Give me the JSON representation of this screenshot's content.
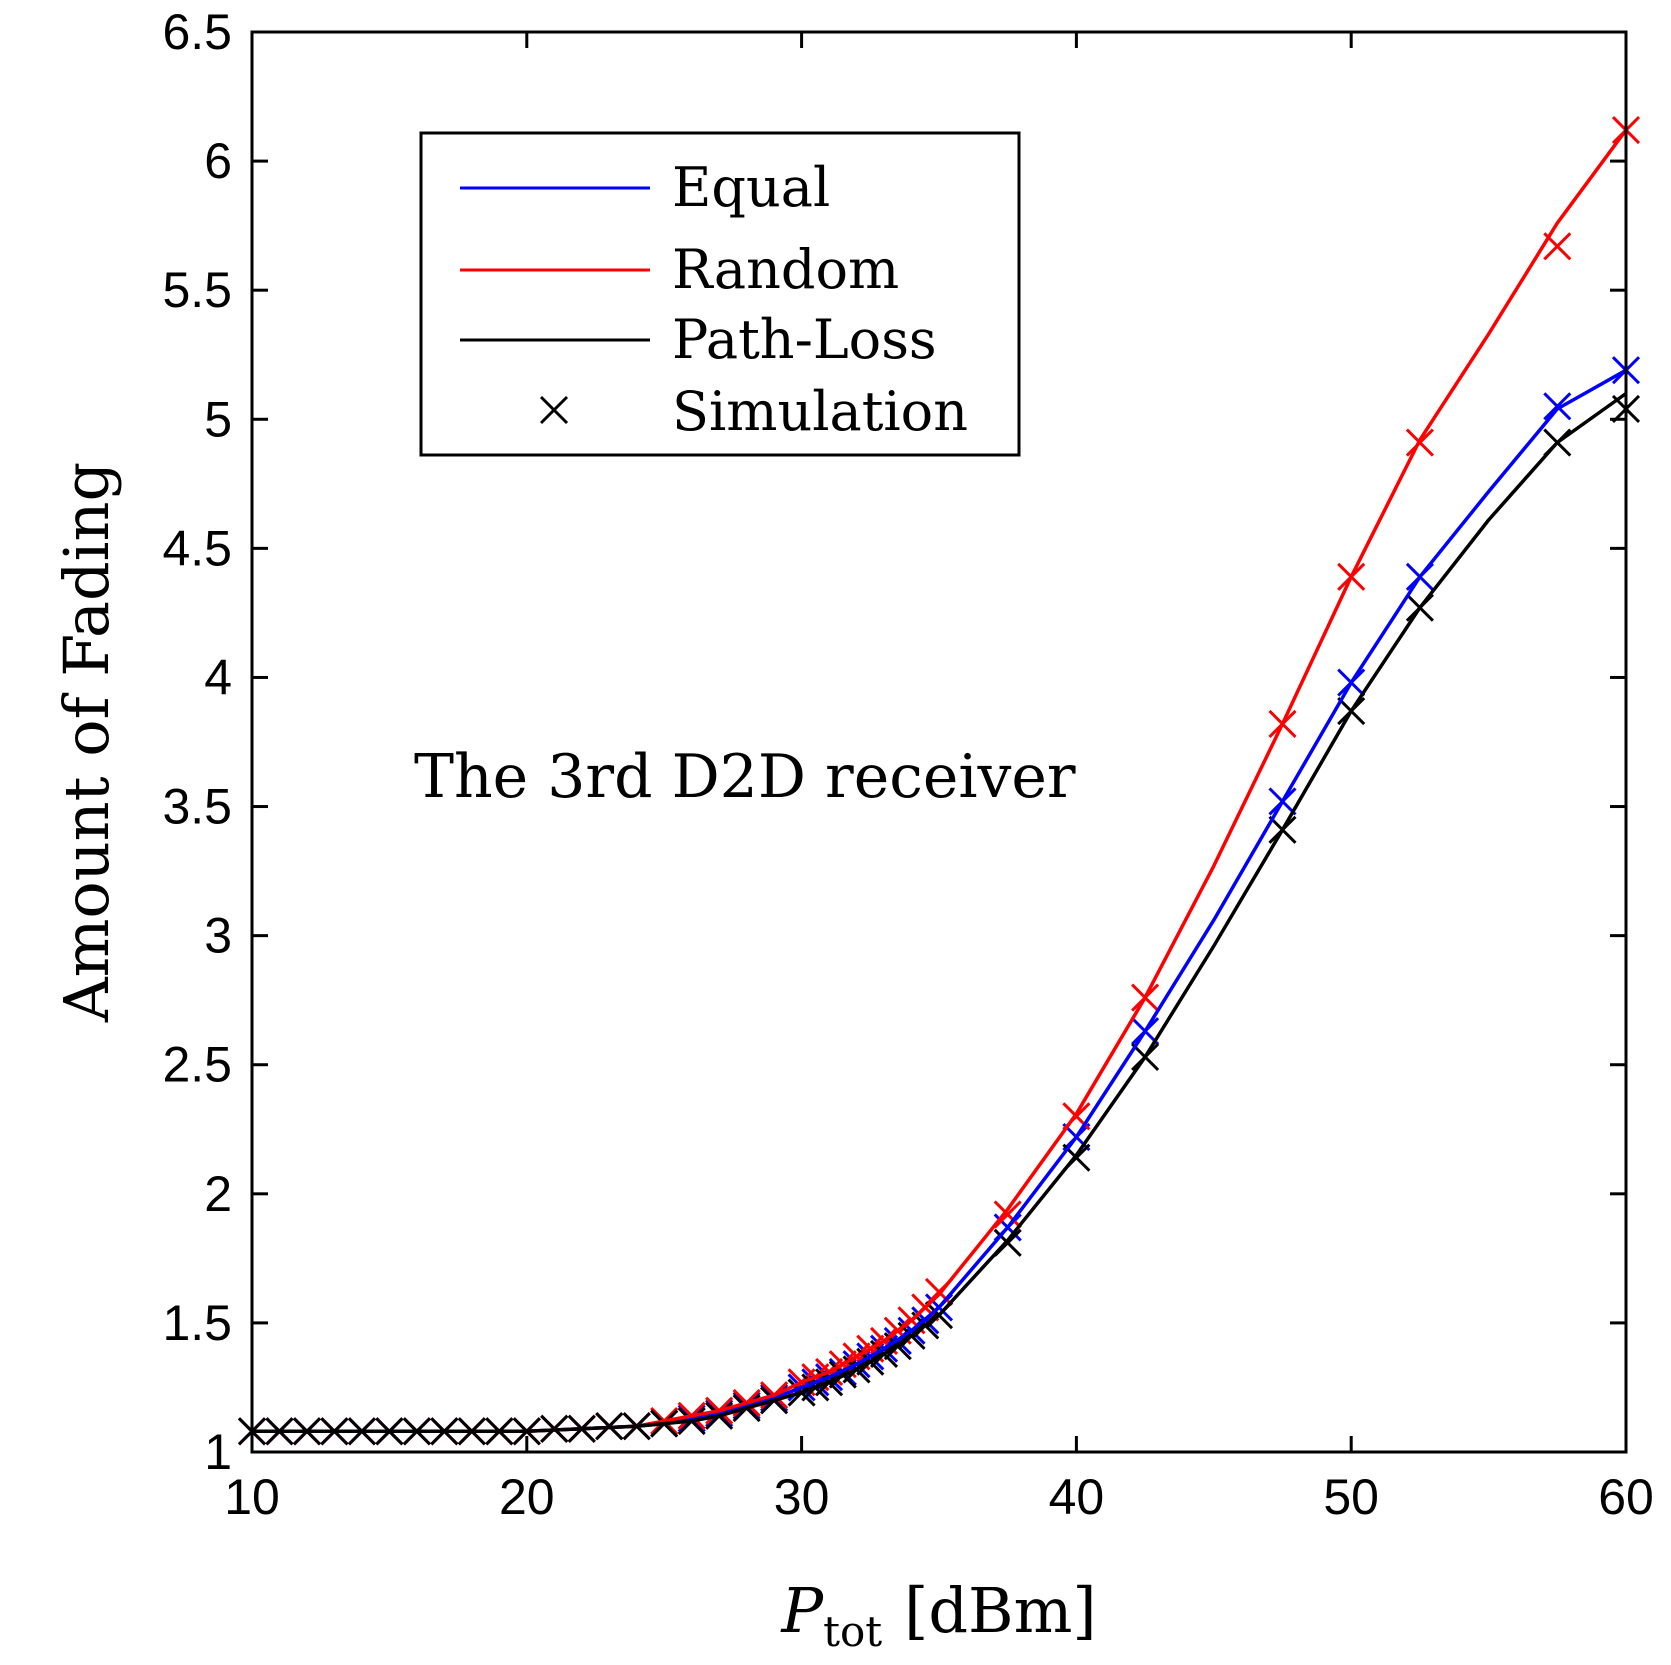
{
  "chart_data": {
    "type": "line",
    "title": "",
    "xlabel_main": "P",
    "xlabel_sub": "tot",
    "xlabel_unit": "[dBm]",
    "ylabel": "Amount of Fading",
    "xlim": [
      10,
      60
    ],
    "ylim": [
      1,
      6.5
    ],
    "xticks": [
      10,
      20,
      30,
      40,
      50,
      60
    ],
    "yticks": [
      1,
      1.5,
      2,
      2.5,
      3,
      3.5,
      4,
      4.5,
      5,
      5.5,
      6,
      6.5
    ],
    "xtick_labels": [
      "10",
      "20",
      "30",
      "40",
      "50",
      "60"
    ],
    "ytick_labels": [
      "1",
      "1.5",
      "2",
      "2.5",
      "3",
      "3.5",
      "4",
      "4.5",
      "5",
      "5.5",
      "6",
      "6.5"
    ],
    "grid": false,
    "annotation": "The 3rd D2D receiver",
    "legend": {
      "position": "top-left",
      "entries": [
        {
          "label": "Equal",
          "color": "#0000ff",
          "style": "line"
        },
        {
          "label": "Random",
          "color": "#ff0000",
          "style": "line"
        },
        {
          "label": "Path-Loss",
          "color": "#000000",
          "style": "line"
        },
        {
          "label": "Simulation",
          "color": "#000000",
          "style": "marker"
        }
      ]
    },
    "series": [
      {
        "name": "Equal",
        "color": "#0000ff",
        "x": [
          10,
          12,
          14,
          16,
          18,
          20,
          22,
          24,
          25,
          26,
          27,
          28,
          29,
          30,
          31,
          32,
          33,
          34,
          35,
          37.5,
          40,
          42.5,
          45,
          47.5,
          50,
          52.5,
          55,
          57.5,
          60
        ],
        "y": [
          1.08,
          1.08,
          1.08,
          1.08,
          1.08,
          1.08,
          1.09,
          1.1,
          1.11,
          1.13,
          1.15,
          1.18,
          1.21,
          1.25,
          1.29,
          1.34,
          1.4,
          1.47,
          1.56,
          1.87,
          2.22,
          2.63,
          3.06,
          3.52,
          3.98,
          4.39,
          4.72,
          5.04,
          5.19
        ]
      },
      {
        "name": "Random",
        "color": "#ff0000",
        "x": [
          10,
          12,
          14,
          16,
          18,
          20,
          22,
          24,
          25,
          26,
          27,
          28,
          29,
          30,
          31,
          32,
          33,
          34,
          35,
          37.5,
          40,
          42.5,
          45,
          47.5,
          50,
          52.5,
          55,
          57.5,
          60
        ],
        "y": [
          1.08,
          1.08,
          1.08,
          1.08,
          1.08,
          1.08,
          1.09,
          1.1,
          1.12,
          1.14,
          1.16,
          1.19,
          1.22,
          1.27,
          1.31,
          1.37,
          1.43,
          1.51,
          1.61,
          1.94,
          2.31,
          2.76,
          3.27,
          3.82,
          4.39,
          4.92,
          5.33,
          5.76,
          6.12
        ]
      },
      {
        "name": "Path-Loss",
        "color": "#000000",
        "x": [
          10,
          12,
          14,
          16,
          18,
          20,
          22,
          24,
          25,
          26,
          27,
          28,
          29,
          30,
          31,
          32,
          33,
          34,
          35,
          37.5,
          40,
          42.5,
          45,
          47.5,
          50,
          52.5,
          55,
          57.5,
          60
        ],
        "y": [
          1.08,
          1.08,
          1.08,
          1.08,
          1.08,
          1.08,
          1.09,
          1.1,
          1.11,
          1.12,
          1.14,
          1.17,
          1.2,
          1.23,
          1.27,
          1.32,
          1.38,
          1.45,
          1.53,
          1.82,
          2.15,
          2.53,
          2.96,
          3.41,
          3.87,
          4.27,
          4.61,
          4.91,
          5.1
        ]
      }
    ],
    "simulation": [
      {
        "name": "Equal",
        "color": "#0000ff",
        "x": [
          10,
          11,
          12,
          13,
          14,
          15,
          16,
          17,
          18,
          19,
          20,
          21,
          22,
          23,
          24,
          25,
          26,
          27,
          28,
          29,
          30,
          30.5,
          31,
          31.5,
          32,
          32.5,
          33,
          33.5,
          34,
          34.5,
          35,
          37.5,
          40,
          42.5,
          47.5,
          50,
          52.5,
          57.5,
          60
        ],
        "y": [
          1.08,
          1.08,
          1.08,
          1.08,
          1.08,
          1.08,
          1.08,
          1.08,
          1.08,
          1.08,
          1.08,
          1.09,
          1.09,
          1.1,
          1.1,
          1.11,
          1.13,
          1.15,
          1.18,
          1.21,
          1.25,
          1.27,
          1.29,
          1.31,
          1.34,
          1.37,
          1.4,
          1.43,
          1.47,
          1.51,
          1.56,
          1.87,
          2.22,
          2.63,
          3.52,
          3.98,
          4.39,
          5.05,
          5.19
        ]
      },
      {
        "name": "Random",
        "color": "#ff0000",
        "x": [
          10,
          11,
          12,
          13,
          14,
          15,
          16,
          17,
          18,
          19,
          20,
          21,
          22,
          23,
          24,
          25,
          26,
          27,
          28,
          29,
          30,
          30.5,
          31,
          31.5,
          32,
          32.5,
          33,
          33.5,
          34,
          34.5,
          35,
          37.5,
          40,
          42.5,
          47.5,
          50,
          52.5,
          57.5,
          60
        ],
        "y": [
          1.08,
          1.08,
          1.08,
          1.08,
          1.08,
          1.08,
          1.08,
          1.08,
          1.08,
          1.08,
          1.08,
          1.09,
          1.09,
          1.1,
          1.1,
          1.12,
          1.14,
          1.16,
          1.19,
          1.22,
          1.27,
          1.29,
          1.31,
          1.34,
          1.37,
          1.4,
          1.43,
          1.47,
          1.51,
          1.56,
          1.62,
          1.92,
          2.3,
          2.76,
          3.82,
          4.39,
          4.91,
          5.67,
          6.12
        ]
      },
      {
        "name": "Path-Loss",
        "color": "#000000",
        "x": [
          10,
          11,
          12,
          13,
          14,
          15,
          16,
          17,
          18,
          19,
          20,
          21,
          22,
          23,
          24,
          25,
          26,
          27,
          28,
          29,
          30,
          30.5,
          31,
          31.5,
          32,
          32.5,
          33,
          33.5,
          34,
          34.5,
          35,
          37.5,
          40,
          42.5,
          47.5,
          50,
          52.5,
          57.5,
          60
        ],
        "y": [
          1.08,
          1.08,
          1.08,
          1.08,
          1.08,
          1.08,
          1.08,
          1.08,
          1.08,
          1.08,
          1.08,
          1.09,
          1.09,
          1.1,
          1.1,
          1.11,
          1.12,
          1.14,
          1.17,
          1.2,
          1.23,
          1.25,
          1.27,
          1.3,
          1.32,
          1.35,
          1.38,
          1.41,
          1.45,
          1.49,
          1.53,
          1.81,
          2.14,
          2.53,
          3.41,
          3.87,
          4.27,
          4.91,
          5.04
        ]
      }
    ]
  }
}
